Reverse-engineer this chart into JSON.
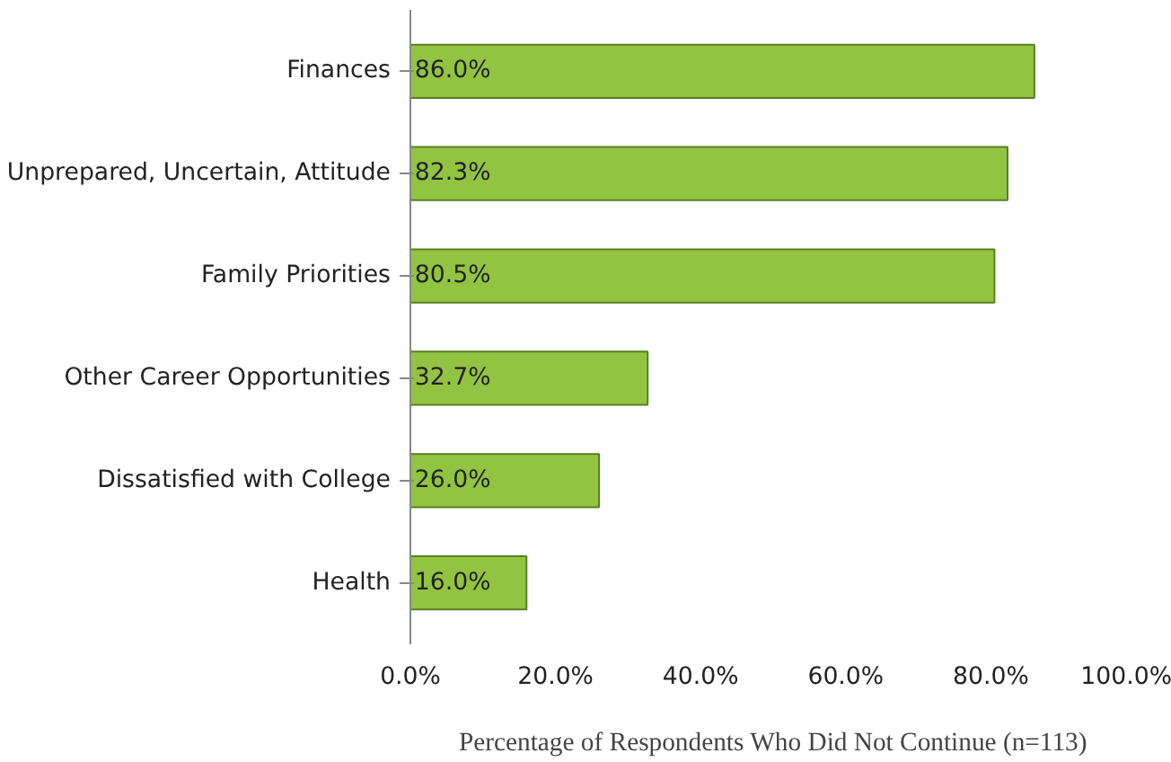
{
  "chart_data": {
    "type": "bar",
    "orientation": "horizontal",
    "categories": [
      "Finances",
      "Unprepared, Uncertain, Attitude",
      "Family Priorities",
      "Other Career Opportunities",
      "Dissatisfied with College",
      "Health"
    ],
    "values": [
      86.0,
      82.3,
      80.5,
      32.7,
      26.0,
      16.0
    ],
    "value_labels": [
      "86.0%",
      "82.3%",
      "80.5%",
      "32.7%",
      "26.0%",
      "16.0%"
    ],
    "color": "#92c441",
    "xlim": [
      0,
      100
    ],
    "xticks": [
      {
        "value": 0,
        "label": "0.0%"
      },
      {
        "value": 20,
        "label": "20.0%"
      },
      {
        "value": 40,
        "label": "40.0%"
      },
      {
        "value": 60,
        "label": "60.0%"
      },
      {
        "value": 80,
        "label": "80.0%"
      },
      {
        "value": 100,
        "label": "100.0%"
      }
    ],
    "xlabel": "Percentage of Respondents Who Did Not Continue (n=113)",
    "grid": false
  }
}
